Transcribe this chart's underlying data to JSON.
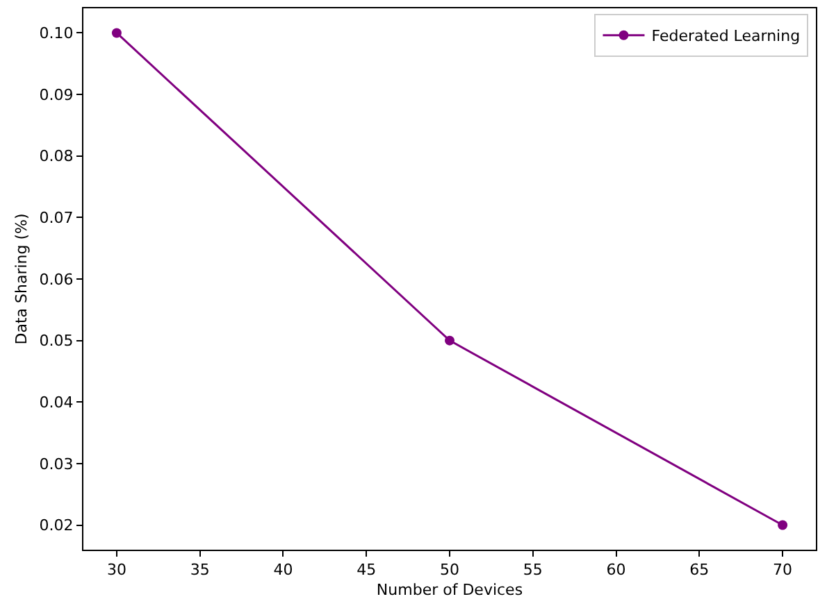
{
  "chart_data": {
    "type": "line",
    "xlabel": "Number of Devices",
    "ylabel": "Data Sharing (%)",
    "x": [
      30,
      50,
      70
    ],
    "series": [
      {
        "name": "Federated Learning",
        "color": "#800080",
        "values": [
          0.1,
          0.05,
          0.02
        ]
      }
    ],
    "xlim": [
      28,
      72
    ],
    "xticks": [
      30,
      35,
      40,
      45,
      50,
      55,
      60,
      65,
      70
    ],
    "ylim": [
      0.016,
      0.104
    ],
    "yticks": [
      {
        "value": 0.02,
        "label": "0.02"
      },
      {
        "value": 0.03,
        "label": "0.03"
      },
      {
        "value": 0.04,
        "label": "0.04"
      },
      {
        "value": 0.05,
        "label": "0.05"
      },
      {
        "value": 0.06,
        "label": "0.06"
      },
      {
        "value": 0.07,
        "label": "0.07"
      },
      {
        "value": 0.08,
        "label": "0.08"
      },
      {
        "value": 0.09,
        "label": "0.09"
      },
      {
        "value": 0.1,
        "label": "0.10"
      }
    ],
    "legend": "top right",
    "marker": "circle",
    "line_style": "solid"
  }
}
